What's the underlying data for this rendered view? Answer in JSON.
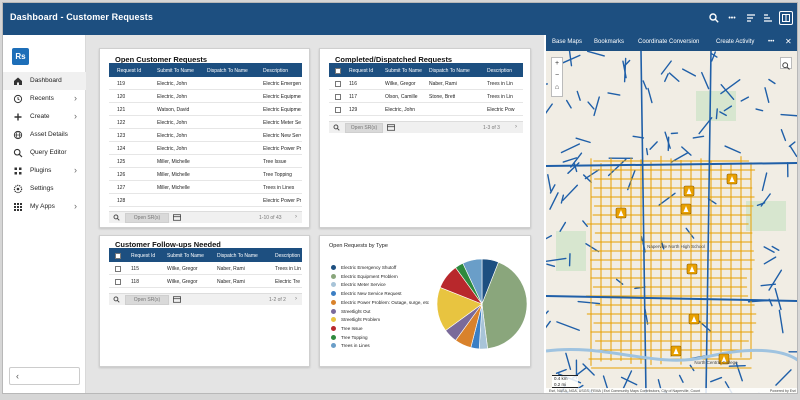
{
  "app": {
    "title": "Dashboard - Customer Requests"
  },
  "toolbar": {
    "more": "•••"
  },
  "sidebar": {
    "logo": "Rs",
    "items": [
      {
        "label": "Dashboard",
        "icon": "home-icon",
        "chevron": ""
      },
      {
        "label": "Recents",
        "icon": "history-icon",
        "chevron": "›"
      },
      {
        "label": "Create",
        "icon": "plus-icon",
        "chevron": "›"
      },
      {
        "label": "Asset Details",
        "icon": "globe-icon",
        "chevron": ""
      },
      {
        "label": "Query Editor",
        "icon": "search-icon",
        "chevron": ""
      },
      {
        "label": "Plugins",
        "icon": "grid-icon",
        "chevron": "›"
      },
      {
        "label": "Settings",
        "icon": "gear-icon",
        "chevron": ""
      },
      {
        "label": "My Apps",
        "icon": "apps-grid-icon",
        "chevron": "›"
      }
    ],
    "collapse": "‹"
  },
  "open_requests": {
    "title": "Open Customer Requests",
    "columns": [
      "Request Id",
      "Submit To Name",
      "Dispatch To Name",
      "Description"
    ],
    "rows": [
      [
        "119",
        "Electric, John",
        "",
        "Electric Emergency"
      ],
      [
        "120",
        "Electric, John",
        "",
        "Electric Equipment"
      ],
      [
        "121",
        "Watson, David",
        "",
        "Electric Equipment"
      ],
      [
        "122",
        "Electric, John",
        "",
        "Electric Meter Se"
      ],
      [
        "123",
        "Electric, John",
        "",
        "Electric New Serv"
      ],
      [
        "124",
        "Electric, John",
        "",
        "Electric Power Pr"
      ],
      [
        "125",
        "Miller, Michelle",
        "",
        "Tree Issue"
      ],
      [
        "126",
        "Miller, Michelle",
        "",
        "Tree Topping"
      ],
      [
        "127",
        "Miller, Michelle",
        "",
        "Trees in Lines"
      ],
      [
        "128",
        "",
        "",
        "Electric Power Pr"
      ]
    ],
    "open_button": "Open SR(s)",
    "pager": "1-10 of 43"
  },
  "completed": {
    "title": "Completed/Dispatched Requests",
    "columns": [
      "Request Id",
      "Submit To Name",
      "Dispatch To Name",
      "Description"
    ],
    "rows": [
      [
        "116",
        "Wilke, Gregor",
        "Naber, Rami",
        "Trees in Lin"
      ],
      [
        "117",
        "Olson, Camille",
        "Stone, Brett",
        "Trees in Lin"
      ],
      [
        "129",
        "Electric, John",
        "",
        "Electric Pow"
      ]
    ],
    "open_button": "Open SR(s)",
    "pager": "1-3 of 3"
  },
  "followups": {
    "title": "Customer Follow-ups Needed",
    "columns": [
      "Request Id",
      "Submit To Name",
      "Dispatch To Name",
      "Description"
    ],
    "rows": [
      [
        "115",
        "Wilke, Gregor",
        "Naber, Rami",
        "Trees in Lin"
      ],
      [
        "118",
        "Wilke, Gregor",
        "Naber, Rami",
        "Electric Tre"
      ]
    ],
    "open_button": "Open SR(s)",
    "pager": "1-2 of 2"
  },
  "chart_data": {
    "type": "pie",
    "title": "Open Requests by Type",
    "series": [
      {
        "name": "Electric Emergency Shutoff",
        "value": 6,
        "color": "#1d4f80"
      },
      {
        "name": "Electric Equipment Problem",
        "value": 42,
        "color": "#8aa67c"
      },
      {
        "name": "Electric Meter Service",
        "value": 3,
        "color": "#a8c4d8"
      },
      {
        "name": "Electric New Service Request",
        "value": 3,
        "color": "#3b7fc4"
      },
      {
        "name": "Electric Power Problem: Outage, surge, etc",
        "value": 6,
        "color": "#d9822b"
      },
      {
        "name": "Streetlight Out",
        "value": 5,
        "color": "#7a6a9a"
      },
      {
        "name": "Streetlight Problem",
        "value": 16,
        "color": "#e8c440"
      },
      {
        "name": "Tree Issue",
        "value": 9,
        "color": "#b8282c"
      },
      {
        "name": "Tree Topping",
        "value": 3,
        "color": "#2e8a3e"
      },
      {
        "name": "Trees in Lines",
        "value": 7,
        "color": "#6a9ec8"
      }
    ]
  },
  "map": {
    "tabs": [
      "Base Maps",
      "Bookmarks",
      "Coordinate Conversion",
      "Create Activity"
    ],
    "more": "•••",
    "labels": [
      "Naperville North High School",
      "North Central College"
    ],
    "scale": [
      "0.4 km",
      "0.2 mi"
    ],
    "attribution": "Esri, NASA, NGA, USGS, FEMA | Esri Community Maps Contributors, City of Naperville, Count",
    "powered": "Powered by Esri"
  },
  "colors": {
    "brand": "#1d4f80",
    "accent": "#e8a000"
  }
}
